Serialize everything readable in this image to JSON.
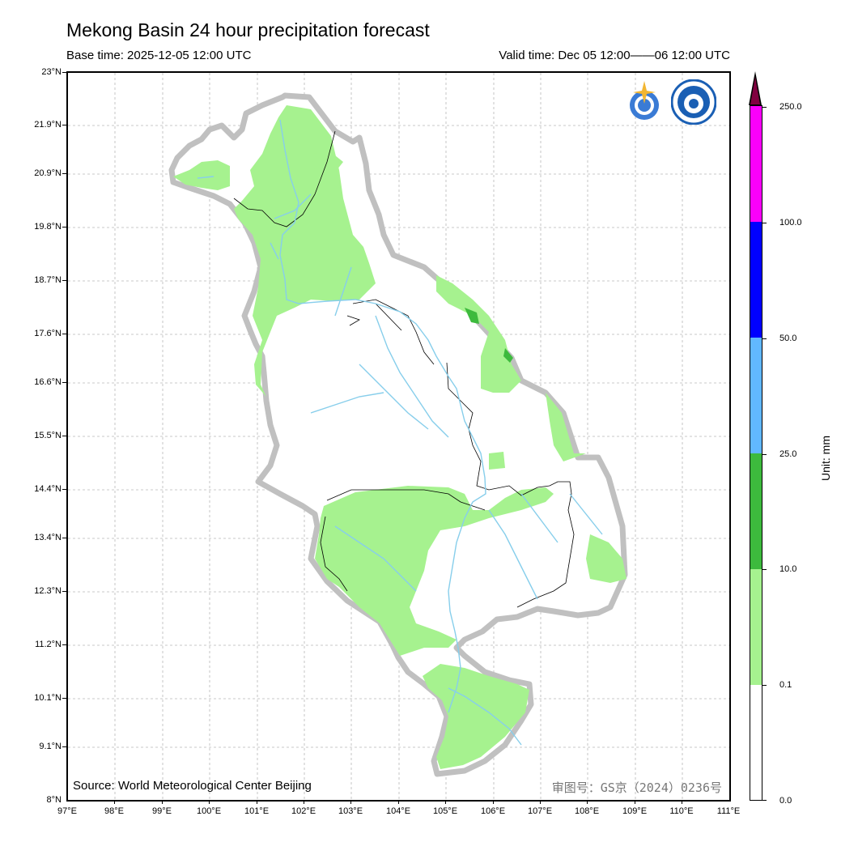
{
  "header": {
    "title": "Mekong Basin 24 hour precipitation forecast",
    "base_time": "Base time: 2025-12-05 12:00 UTC",
    "valid_time": "Valid time: Dec 05 12:00——06 12:00 UTC"
  },
  "axes": {
    "lat_labels": [
      "23°N",
      "21.9°N",
      "20.9°N",
      "19.8°N",
      "18.7°N",
      "17.6°N",
      "16.6°N",
      "15.5°N",
      "14.4°N",
      "13.4°N",
      "12.3°N",
      "11.2°N",
      "10.1°N",
      "9.1°N",
      "8°N"
    ],
    "lon_labels": [
      "97°E",
      "98°E",
      "99°E",
      "100°E",
      "101°E",
      "102°E",
      "103°E",
      "104°E",
      "105°E",
      "106°E",
      "107°E",
      "108°E",
      "109°E",
      "110°E",
      "111°E"
    ]
  },
  "footer": {
    "source": "Source: World Meteorological Center Beijing",
    "approval": "审图号：GS京（2024）0236号"
  },
  "colorbar": {
    "unit": "Unit: mm",
    "levels": [
      "0.0",
      "0.1",
      "10.0",
      "25.0",
      "50.0",
      "100.0",
      "250.0"
    ],
    "colors": [
      "#ffffff",
      "#a6f28f",
      "#3dba3d",
      "#61b8ff",
      "#0000ff",
      "#fa00fa",
      "#800040"
    ]
  },
  "logos": {
    "wmo": "wmo-logo-icon",
    "cma": "cma-logo-icon"
  }
}
